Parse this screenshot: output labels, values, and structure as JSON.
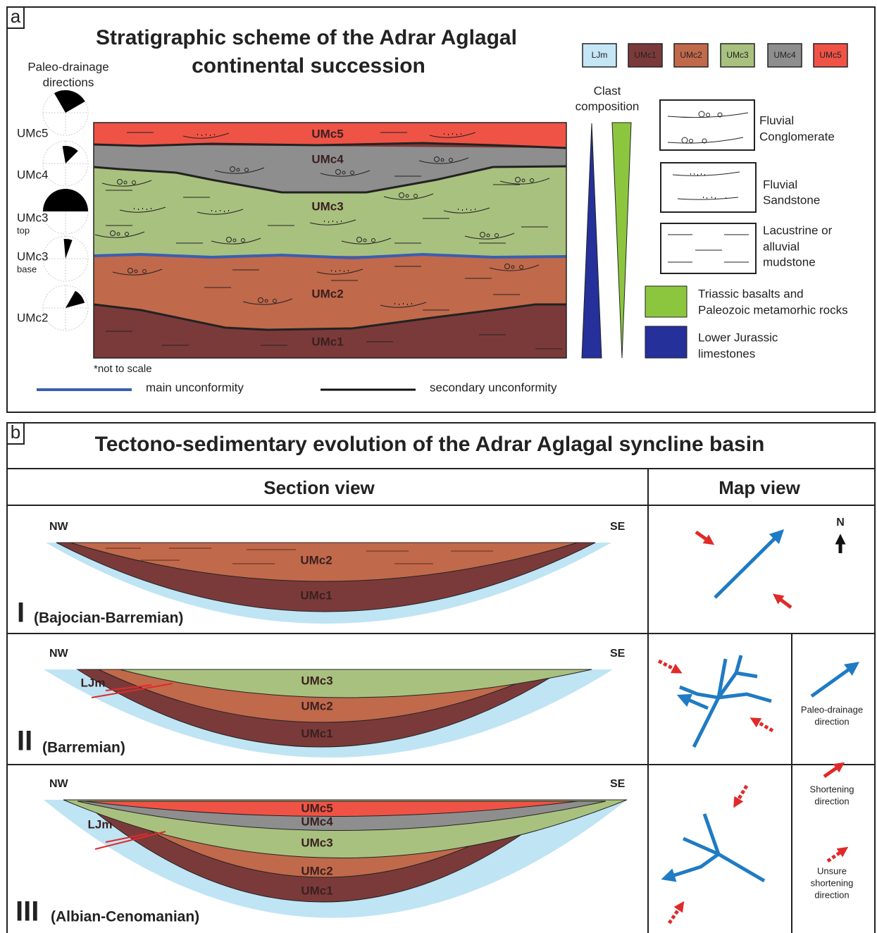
{
  "panel_a": {
    "label": "a",
    "title": [
      "Stratigraphic scheme of the Adrar Aglagal",
      "continental succession"
    ],
    "legend_units": [
      "LJm",
      "UMc1",
      "UMc2",
      "UMc3",
      "UMc4",
      "UMc5"
    ],
    "paleo_title": [
      "Paleo-drainage",
      "directions"
    ],
    "rose_labels": [
      {
        "unit": "UMc5"
      },
      {
        "unit": "UMc4"
      },
      {
        "unit": "UMc3",
        "sub": "top"
      },
      {
        "unit": "UMc3",
        "sub": "base"
      },
      {
        "unit": "UMc2"
      }
    ],
    "column_units": [
      "UMc5",
      "UMc4",
      "UMc3",
      "UMc2",
      "UMc1"
    ],
    "clast_title": [
      "Clast",
      "composition"
    ],
    "facies": [
      [
        "Fluvial",
        "Conglomerate"
      ],
      [
        "Fluvial",
        "Sandstone"
      ],
      [
        "Lacustrine or",
        "alluvial",
        "mudstone"
      ]
    ],
    "sources": [
      [
        "Triassic basalts and",
        "Paleozoic metamorhic rocks"
      ],
      [
        "Lower Jurassic",
        "limestones"
      ]
    ],
    "note": "*not to scale",
    "unconformities": [
      "main unconformity",
      "secondary unconformity"
    ]
  },
  "panel_b": {
    "label": "b",
    "title": "Tectono-sedimentary evolution of the Adrar Aglagal syncline basin",
    "headers": [
      "Section view",
      "Map view"
    ],
    "ends": [
      "NW",
      "SE"
    ],
    "north": "N",
    "stages": [
      {
        "numeral": "I",
        "period": "(Bajocian-Barremian)",
        "units": [
          "UMc2",
          "UMc1"
        ]
      },
      {
        "numeral": "II",
        "period": "(Barremian)",
        "basement": "LJm",
        "units": [
          "UMc3",
          "UMc2",
          "UMc1"
        ]
      },
      {
        "numeral": "III",
        "period": "(Albian-Cenomanian)",
        "basement": "LJm",
        "units": [
          "UMc5",
          "UMc4",
          "UMc3",
          "UMc2",
          "UMc1"
        ]
      }
    ],
    "map_legend": [
      [
        "Paleo-drainage",
        "direction"
      ],
      [
        "Shortening",
        "direction"
      ],
      [
        "Unsure",
        "shortening",
        "direction"
      ]
    ]
  }
}
